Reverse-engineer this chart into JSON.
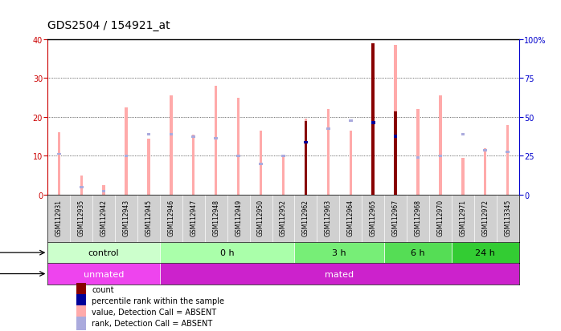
{
  "title": "GDS2504 / 154921_at",
  "samples": [
    "GSM112931",
    "GSM112935",
    "GSM112942",
    "GSM112943",
    "GSM112945",
    "GSM112946",
    "GSM112947",
    "GSM112948",
    "GSM112949",
    "GSM112950",
    "GSM112952",
    "GSM112962",
    "GSM112963",
    "GSM112964",
    "GSM112965",
    "GSM112967",
    "GSM112968",
    "GSM112970",
    "GSM112971",
    "GSM112972",
    "GSM113345"
  ],
  "pink_bar_values": [
    16,
    5,
    2.5,
    22.5,
    14.5,
    25.5,
    15.5,
    28,
    25,
    16.5,
    10,
    19.5,
    22,
    16.5,
    33,
    38.5,
    22,
    25.5,
    9.5,
    12,
    18
  ],
  "red_bar_values": [
    0,
    0,
    0,
    0,
    0,
    0,
    0,
    0,
    0,
    0,
    0,
    19,
    0,
    0,
    39,
    21.5,
    0,
    0,
    0,
    0,
    0
  ],
  "light_blue_values": [
    10.5,
    2,
    1,
    10,
    15.5,
    15.5,
    15,
    14.5,
    10,
    8,
    10,
    13.5,
    17,
    19,
    18.5,
    15,
    9.5,
    10,
    15.5,
    11.5,
    11
  ],
  "blue_square_values": [
    0,
    0,
    0,
    0,
    0,
    0,
    0,
    0,
    0,
    0,
    0,
    13.5,
    0,
    0,
    18.5,
    15,
    0,
    0,
    0,
    0,
    0
  ],
  "ylim": [
    0,
    40
  ],
  "y2lim": [
    0,
    100
  ],
  "y_ticks": [
    0,
    10,
    20,
    30,
    40
  ],
  "y2_ticks": [
    0,
    25,
    50,
    75,
    100
  ],
  "y2_labels": [
    "0",
    "25",
    "50",
    "75",
    "100%"
  ],
  "groups": [
    {
      "label": "control",
      "start": 0,
      "end": 5,
      "color": "#ccffcc"
    },
    {
      "label": "0 h",
      "start": 5,
      "end": 11,
      "color": "#aaffaa"
    },
    {
      "label": "3 h",
      "start": 11,
      "end": 15,
      "color": "#77ee77"
    },
    {
      "label": "6 h",
      "start": 15,
      "end": 18,
      "color": "#55dd55"
    },
    {
      "label": "24 h",
      "start": 18,
      "end": 21,
      "color": "#33cc33"
    }
  ],
  "protocol_groups": [
    {
      "label": "unmated",
      "start": 0,
      "end": 5,
      "color": "#ee44ee"
    },
    {
      "label": "mated",
      "start": 5,
      "end": 21,
      "color": "#cc22cc"
    }
  ],
  "left_axis_color": "#cc0000",
  "right_axis_color": "#0000cc",
  "title_fontsize": 10,
  "tick_fontsize": 7,
  "bar_color_pink": "#ffaaaa",
  "bar_color_red": "#880000",
  "bar_color_lightblue": "#aaaadd",
  "bar_color_blue": "#000099"
}
